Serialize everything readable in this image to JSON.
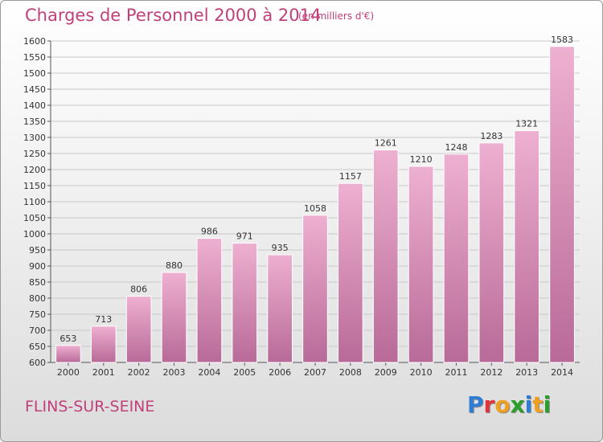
{
  "header": {
    "title": "Charges de Personnel 2000 à 2014",
    "subtitle": "(en milliers d'€)"
  },
  "footer": {
    "city": "FLINS-SUR-SEINE",
    "logo_letters": [
      "P",
      "r",
      "o",
      "x",
      "i",
      "t",
      "i"
    ]
  },
  "colors": {
    "title": "#c0407a",
    "bar_light": "#eeb0d0",
    "bar_dark": "#b86a98",
    "grid": "#c8c8c8",
    "logo": [
      "#2e7fd4",
      "#e0343a",
      "#f0a020",
      "#2aa02a",
      "#2e7fd4",
      "#f0a020",
      "#2aa02a"
    ]
  },
  "chart_data": {
    "type": "bar",
    "categories": [
      "2000",
      "2001",
      "2002",
      "2003",
      "2004",
      "2005",
      "2006",
      "2007",
      "2008",
      "2009",
      "2010",
      "2011",
      "2012",
      "2013",
      "2014"
    ],
    "values": [
      653,
      713,
      806,
      880,
      986,
      971,
      935,
      1058,
      1157,
      1261,
      1210,
      1248,
      1283,
      1321,
      1583
    ],
    "ylim": [
      600,
      1600
    ],
    "yticks": [
      600,
      650,
      700,
      750,
      800,
      850,
      900,
      950,
      1000,
      1050,
      1100,
      1150,
      1200,
      1250,
      1300,
      1350,
      1400,
      1450,
      1500,
      1550,
      1600
    ],
    "grid": true,
    "data_labels": true
  }
}
